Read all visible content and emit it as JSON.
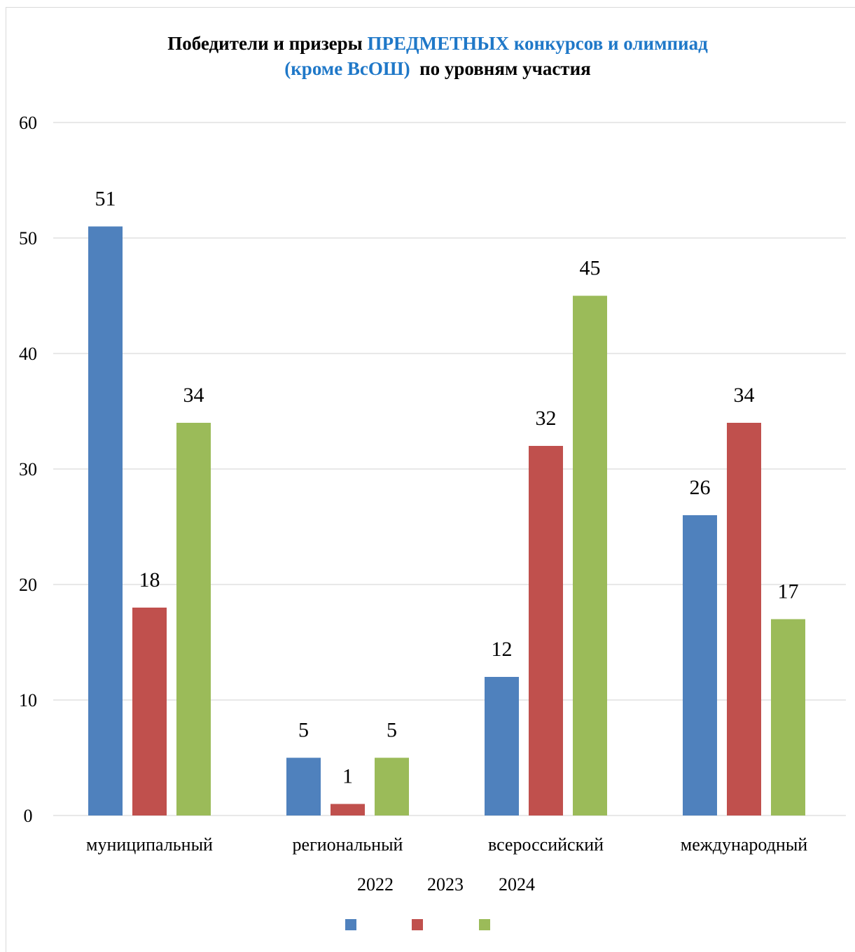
{
  "chart_data": {
    "type": "bar",
    "title_parts": [
      {
        "text": "Победители и призеры ",
        "accent": false
      },
      {
        "text": "ПРЕДМЕТНЫХ конкурсов и олимпиад",
        "accent": true
      },
      {
        "text": "(кроме ВсОШ)",
        "accent": true
      },
      {
        "text": "  по уровням участия",
        "accent": false
      }
    ],
    "categories": [
      "муниципальный",
      "региональный",
      "всероссийский",
      "международный"
    ],
    "series": [
      {
        "name": "2022",
        "color": "#4f81bd",
        "values": [
          51,
          5,
          12,
          26
        ]
      },
      {
        "name": "2023",
        "color": "#c0504d",
        "values": [
          18,
          1,
          32,
          34
        ]
      },
      {
        "name": "2024",
        "color": "#9bbb59",
        "values": [
          34,
          5,
          45,
          17
        ]
      }
    ],
    "ylim": [
      0,
      60
    ],
    "yticks": [
      0,
      10,
      20,
      30,
      40,
      50,
      60
    ],
    "grid": true,
    "legend_position": "bottom",
    "gridline_color": "#d9d9d9"
  }
}
